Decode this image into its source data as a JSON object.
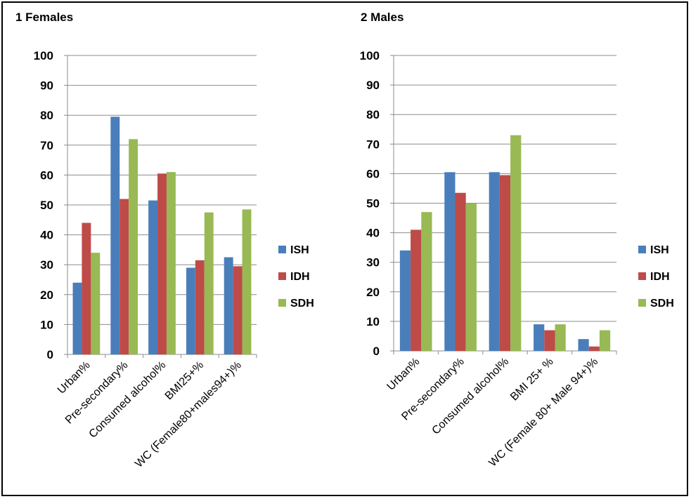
{
  "colors": {
    "ISH": "#4a7ebb",
    "IDH": "#be4b48",
    "SDH": "#98b954"
  },
  "chart_data": [
    {
      "type": "bar",
      "title": "1 Females",
      "categories": [
        "Urban%",
        "Pre-secondary%",
        "Consumed alcohol%",
        "BMI25+%",
        "WC (Female80+males94+)%"
      ],
      "series": [
        {
          "name": "ISH",
          "values": [
            24,
            79.5,
            51.5,
            29,
            32.5
          ]
        },
        {
          "name": "IDH",
          "values": [
            44,
            52,
            60.5,
            31.5,
            29.5
          ]
        },
        {
          "name": "SDH",
          "values": [
            34,
            72,
            61,
            47.5,
            48.5
          ]
        }
      ],
      "ylim": [
        0,
        100
      ],
      "yticks": [
        "0",
        "10",
        "20",
        "30",
        "40",
        "50",
        "60",
        "70",
        "80",
        "90",
        "100"
      ],
      "grid": true,
      "legend": "right"
    },
    {
      "type": "bar",
      "title": "2 Males",
      "categories": [
        "Urban%",
        "Pre-secondary%",
        "Consumed alcohol%",
        "BMI 25+ %",
        "WC (Female 80+ Male 94+)%"
      ],
      "series": [
        {
          "name": "ISH",
          "values": [
            34,
            60.5,
            60.5,
            9,
            4
          ]
        },
        {
          "name": "IDH",
          "values": [
            41,
            53.5,
            59.5,
            7,
            1.5
          ]
        },
        {
          "name": "SDH",
          "values": [
            47,
            50,
            73,
            9,
            7
          ]
        }
      ],
      "ylim": [
        0,
        100
      ],
      "yticks": [
        "0",
        "10",
        "20",
        "30",
        "40",
        "50",
        "60",
        "70",
        "80",
        "90",
        "100"
      ],
      "grid": true,
      "legend": "right"
    }
  ]
}
